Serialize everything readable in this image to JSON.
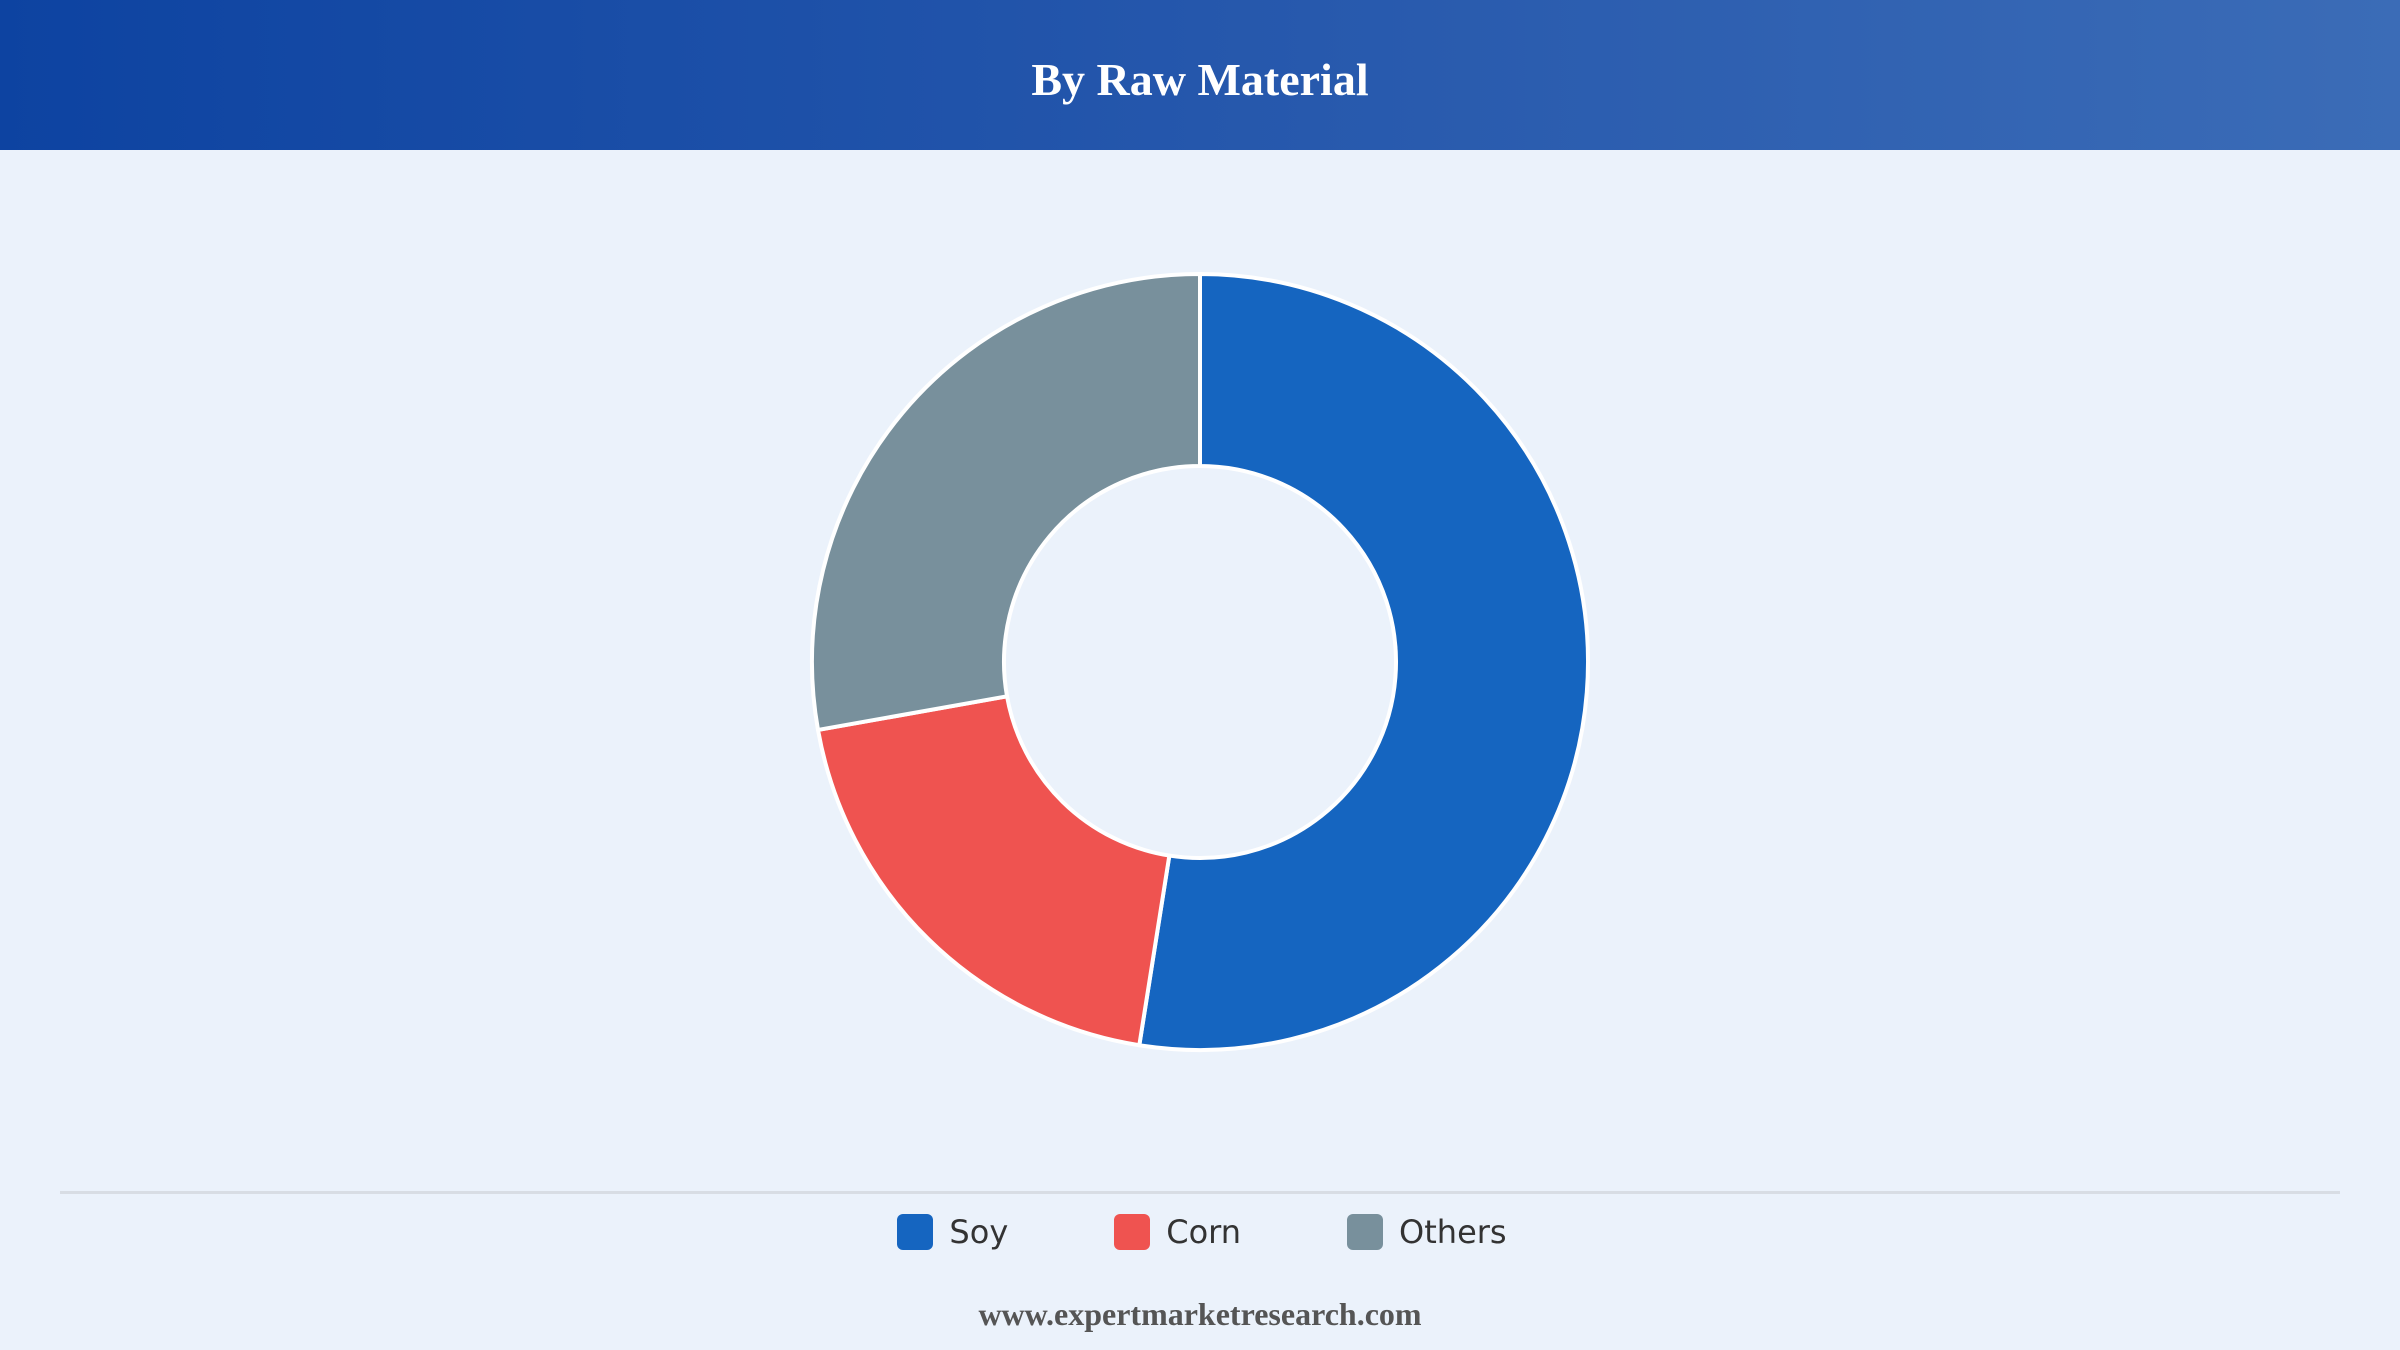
{
  "header": {
    "title": "By Raw Material"
  },
  "chart_data": {
    "type": "pie",
    "categories": [
      "Soy",
      "Corn",
      "Others"
    ],
    "values": [
      52.5,
      19.7,
      27.8
    ],
    "colors": [
      "#1565c0",
      "#ef5350",
      "#78909c"
    ],
    "donut": true,
    "legend": "bottom-center"
  },
  "footer": {
    "source": "www.expertmarketresearch.com"
  }
}
